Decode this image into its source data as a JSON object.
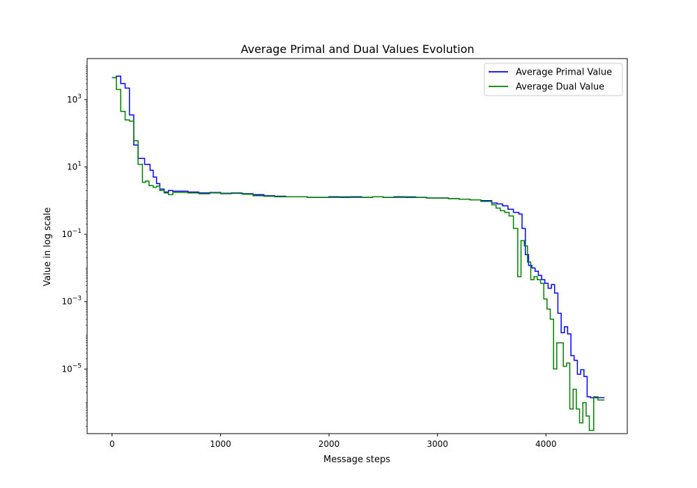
{
  "chart_data": {
    "type": "line",
    "step": true,
    "title": "Average Primal and Dual Values Evolution",
    "xlabel": "Message steps",
    "ylabel": "Value in log scale",
    "yscale": "log",
    "xlim": [
      -230,
      4750
    ],
    "ylim_log10": [
      -6.92,
      4.22
    ],
    "x_ticks": [
      0,
      1000,
      2000,
      3000,
      4000
    ],
    "x_tick_labels": [
      "0",
      "1000",
      "2000",
      "3000",
      "4000"
    ],
    "y_ticks_log10": [
      3,
      1,
      -1,
      -3,
      -5
    ],
    "y_tick_labels": [
      {
        "base": "10",
        "exp": "3"
      },
      {
        "base": "10",
        "exp": "1"
      },
      {
        "base": "10",
        "exp": "−1"
      },
      {
        "base": "10",
        "exp": "−3"
      },
      {
        "base": "10",
        "exp": "−5"
      }
    ],
    "grid": false,
    "legend_position": "top-right",
    "series": [
      {
        "name": "Average Primal Value",
        "color": "#0000ff",
        "x": [
          0,
          40,
          80,
          120,
          160,
          200,
          240,
          300,
          350,
          380,
          410,
          440,
          480,
          520,
          560,
          700,
          800,
          900,
          1000,
          1100,
          1200,
          1300,
          1400,
          1500,
          1600,
          1700,
          1800,
          1900,
          2000,
          2100,
          2200,
          2300,
          2400,
          2500,
          2600,
          2700,
          2800,
          2900,
          3000,
          3100,
          3200,
          3300,
          3400,
          3500,
          3550,
          3600,
          3650,
          3700,
          3750,
          3780,
          3810,
          3840,
          3870,
          3900,
          3930,
          3960,
          3990,
          4020,
          4050,
          4080,
          4110,
          4140,
          4170,
          4200,
          4230,
          4260,
          4290,
          4320,
          4350,
          4380,
          4410,
          4440,
          4480,
          4520
        ],
        "y": [
          4500,
          5000,
          3000,
          2200,
          350,
          45,
          18,
          12,
          8,
          5,
          3.2,
          2.2,
          1.8,
          2.0,
          1.9,
          1.8,
          1.7,
          1.75,
          1.65,
          1.7,
          1.6,
          1.5,
          1.4,
          1.35,
          1.3,
          1.3,
          1.25,
          1.25,
          1.3,
          1.25,
          1.3,
          1.25,
          1.3,
          1.25,
          1.3,
          1.25,
          1.25,
          1.2,
          1.2,
          1.15,
          1.1,
          1.05,
          1.0,
          0.85,
          0.8,
          0.7,
          0.55,
          0.45,
          0.4,
          0.15,
          0.025,
          0.012,
          0.01,
          0.008,
          0.006,
          0.0045,
          0.0035,
          0.0025,
          0.0032,
          0.0018,
          0.00045,
          0.00012,
          0.00018,
          0.00011,
          2.5e-05,
          1.8e-05,
          7e-06,
          9.5e-06,
          6e-06,
          1.5e-06,
          1.4e-06,
          1.4e-06,
          1.4e-06,
          1.4e-06
        ]
      },
      {
        "name": "Average Dual Value",
        "color": "#008000",
        "x": [
          0,
          40,
          80,
          120,
          160,
          200,
          240,
          280,
          310,
          340,
          380,
          410,
          440,
          480,
          520,
          560,
          700,
          800,
          900,
          1000,
          1100,
          1200,
          1300,
          1400,
          1500,
          1600,
          1700,
          1800,
          1900,
          2000,
          2100,
          2200,
          2300,
          2400,
          2500,
          2600,
          2700,
          2800,
          2900,
          3000,
          3100,
          3200,
          3300,
          3400,
          3500,
          3540,
          3580,
          3620,
          3660,
          3700,
          3740,
          3770,
          3800,
          3830,
          3860,
          3890,
          3920,
          3950,
          3980,
          4010,
          4040,
          4070,
          4100,
          4130,
          4160,
          4190,
          4220,
          4250,
          4280,
          4310,
          4340,
          4370,
          4400,
          4440,
          4480,
          4520
        ],
        "y": [
          4500,
          2000,
          450,
          250,
          230,
          60,
          12,
          3.5,
          3.8,
          2.8,
          2.5,
          2.7,
          2.0,
          1.7,
          1.5,
          1.75,
          1.7,
          1.6,
          1.7,
          1.6,
          1.65,
          1.55,
          1.4,
          1.35,
          1.3,
          1.3,
          1.3,
          1.25,
          1.25,
          1.25,
          1.3,
          1.25,
          1.25,
          1.3,
          1.25,
          1.25,
          1.3,
          1.25,
          1.2,
          1.2,
          1.15,
          1.1,
          1.05,
          0.95,
          0.75,
          0.6,
          0.5,
          0.45,
          0.35,
          0.15,
          0.0055,
          0.065,
          0.045,
          0.015,
          0.0045,
          0.0055,
          0.0045,
          0.0035,
          0.0012,
          0.0006,
          0.0003,
          1e-05,
          6e-05,
          6e-05,
          1.2e-05,
          1.5e-05,
          6.5e-07,
          2.5e-06,
          6.5e-07,
          2.5e-07,
          1e-06,
          4e-07,
          1.5e-07,
          1.5e-06,
          1.2e-06,
          1.2e-06
        ]
      }
    ]
  }
}
